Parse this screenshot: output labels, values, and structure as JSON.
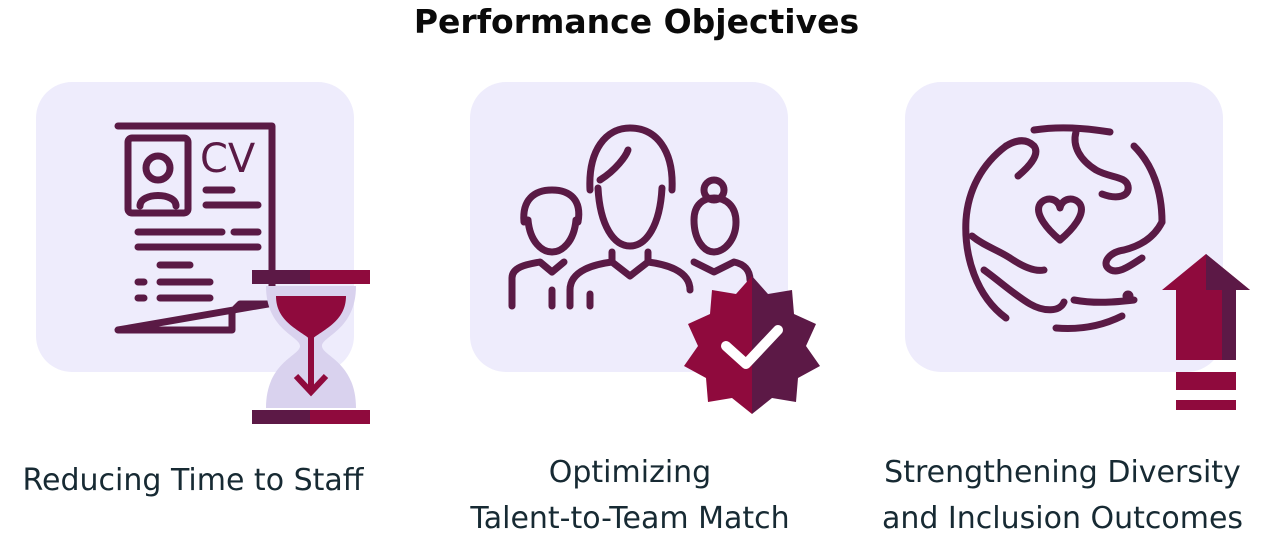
{
  "title": "Performance Objectives",
  "objectives": [
    {
      "caption": "Reducing Time to Staff",
      "icon": "cv-hourglass-icon",
      "badge_text": "CV"
    },
    {
      "caption_line1": "Optimizing",
      "caption_line2": "Talent-to-Team Match",
      "icon": "team-checkmark-icon"
    },
    {
      "caption_line1": "Strengthening Diversity",
      "caption_line2": "and Inclusion Outcomes",
      "icon": "hands-globe-heart-icon"
    }
  ],
  "colors": {
    "tile_bg": "#eeecfc",
    "outline": "#5a1a45",
    "accent": "#8f0a3d",
    "accent_dark": "#5c1946",
    "glass": "#d9d2ee",
    "text": "#172a33"
  }
}
